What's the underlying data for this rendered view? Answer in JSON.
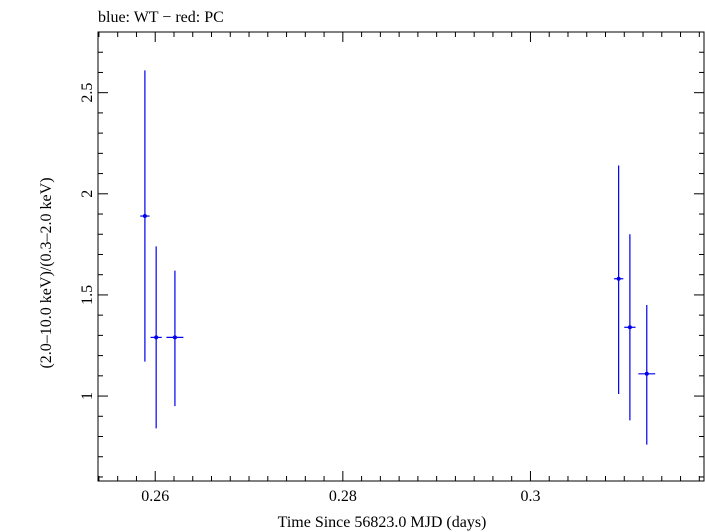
{
  "chart_data": {
    "type": "scatter",
    "title": "blue: WT − red: PC",
    "xlabel": "Time Since 56823.0 MJD (days)",
    "ylabel": "(2.0–10.0 keV)/(0.3–2.0 keV)",
    "xlim": [
      0.2539,
      0.3185
    ],
    "ylim": [
      0.58,
      2.8
    ],
    "x_ticks": [
      0.26,
      0.28,
      0.3
    ],
    "x_tick_labels": [
      "0.26",
      "0.28",
      "0.3"
    ],
    "y_ticks": [
      1.0,
      1.5,
      2.0,
      2.5
    ],
    "y_tick_labels": [
      "1",
      "1.5",
      "2",
      "2.5"
    ],
    "x_minor_step": 0.002,
    "y_minor_step": 0.1,
    "grid": false,
    "series": [
      {
        "color": "#0000ee",
        "points": [
          {
            "x": 0.2589,
            "y": 1.89,
            "xerr": 0.0005,
            "ylo": 1.17,
            "yhi": 2.61
          },
          {
            "x": 0.2601,
            "y": 1.29,
            "xerr": 0.0006,
            "ylo": 0.84,
            "yhi": 1.74
          },
          {
            "x": 0.2621,
            "y": 1.29,
            "xerr": 0.0009,
            "ylo": 0.95,
            "yhi": 1.62
          },
          {
            "x": 0.3094,
            "y": 1.58,
            "xerr": 0.0005,
            "ylo": 1.01,
            "yhi": 2.14
          },
          {
            "x": 0.3106,
            "y": 1.34,
            "xerr": 0.0006,
            "ylo": 0.88,
            "yhi": 1.8
          },
          {
            "x": 0.3124,
            "y": 1.11,
            "xerr": 0.0009,
            "ylo": 0.76,
            "yhi": 1.45
          }
        ]
      }
    ]
  }
}
